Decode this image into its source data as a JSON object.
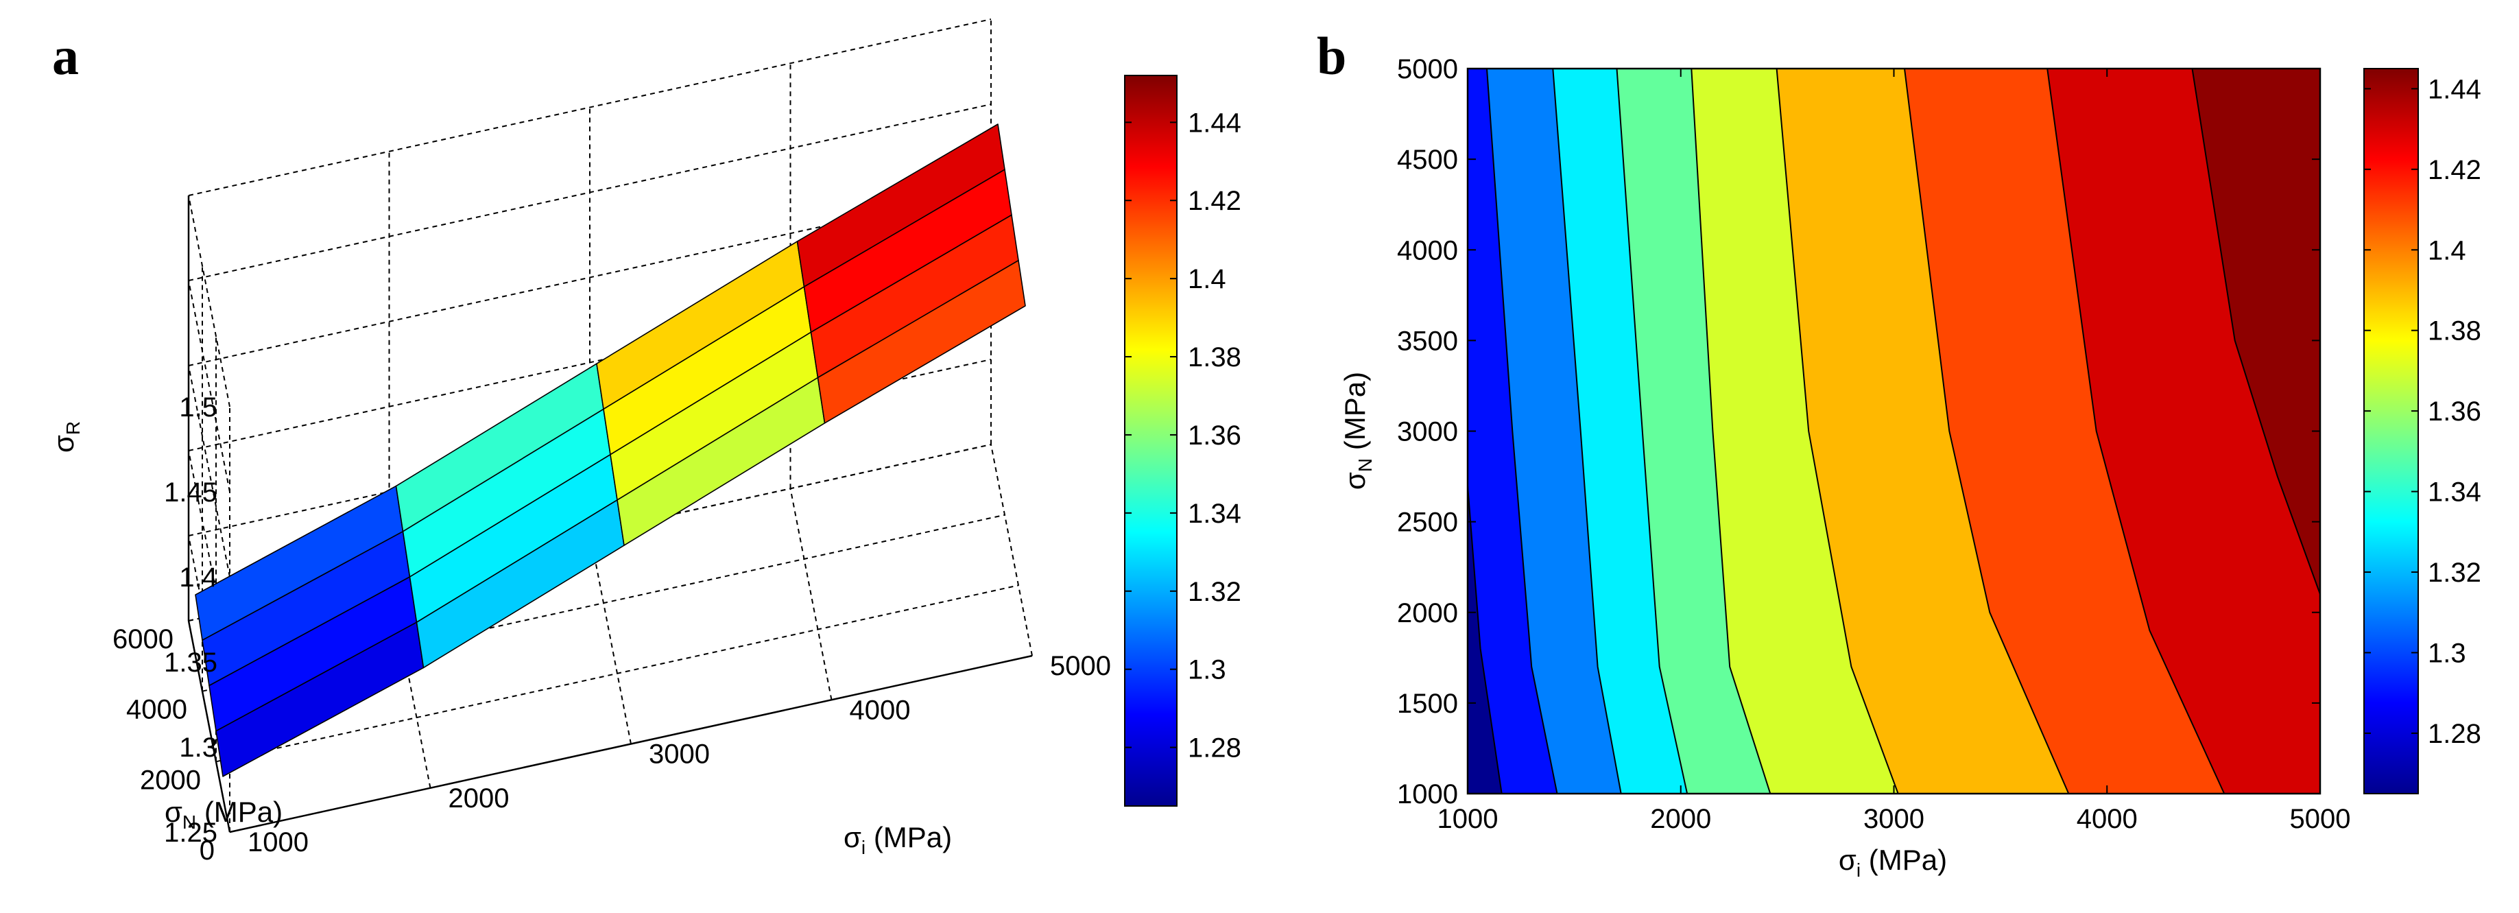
{
  "panels": [
    {
      "letter": "a"
    },
    {
      "letter": "b"
    }
  ],
  "chart_data": [
    {
      "type": "surface",
      "panel": "a",
      "x_name": "σ",
      "x_sub": "i",
      "x_unit": " (MPa)",
      "y_name": "σ",
      "y_sub": "N",
      "y_unit": " (MPa)",
      "z_name": "σ",
      "z_sub": "R",
      "xlim": [
        1000,
        5000
      ],
      "ylim": [
        0,
        6000
      ],
      "zlim": [
        1.25,
        1.5
      ],
      "x_ticks": [
        1000,
        2000,
        3000,
        4000,
        5000
      ],
      "y_ticks": [
        0,
        2000,
        4000,
        6000
      ],
      "z_ticks": [
        1.25,
        1.3,
        1.35,
        1.4,
        1.45,
        1.5
      ],
      "x_tick_labels": [
        "1000",
        "2000",
        "3000",
        "4000",
        "5000"
      ],
      "y_tick_labels": [
        "0",
        "2000",
        "4000",
        "6000"
      ],
      "z_tick_labels": [
        "1.25",
        "1.3",
        "1.35",
        "1.4",
        "1.45",
        "1.5"
      ],
      "x": [
        1000,
        2000,
        3000,
        4000,
        5000
      ],
      "y": [
        1000,
        2000,
        3000,
        4000,
        5000
      ],
      "z": [
        [
          1.262,
          1.3,
          1.346,
          1.392,
          1.435
        ],
        [
          1.268,
          1.306,
          1.352,
          1.398,
          1.441
        ],
        [
          1.274,
          1.312,
          1.358,
          1.404,
          1.447
        ],
        [
          1.28,
          1.318,
          1.364,
          1.41,
          1.453
        ],
        [
          1.286,
          1.324,
          1.37,
          1.416,
          1.459
        ]
      ],
      "colorbar": {
        "range": [
          1.265,
          1.452
        ],
        "ticks": [
          1.28,
          1.3,
          1.32,
          1.34,
          1.36,
          1.38,
          1.4,
          1.42,
          1.44
        ],
        "tick_labels": [
          "1.28",
          "1.3",
          "1.32",
          "1.34",
          "1.36",
          "1.38",
          "1.4",
          "1.42",
          "1.44"
        ]
      },
      "grid": true
    },
    {
      "type": "contour",
      "panel": "b",
      "x_name": "σ",
      "x_sub": "i",
      "x_unit": " (MPa)",
      "y_name": "σ",
      "y_sub": "N",
      "y_unit": " (MPa)",
      "xlim": [
        1000,
        5000
      ],
      "ylim": [
        1000,
        5000
      ],
      "x_ticks": [
        1000,
        2000,
        3000,
        4000,
        5000
      ],
      "y_ticks": [
        1000,
        1500,
        2000,
        2500,
        3000,
        3500,
        4000,
        4500,
        5000
      ],
      "x_tick_labels": [
        "1000",
        "2000",
        "3000",
        "4000",
        "5000"
      ],
      "y_tick_labels": [
        "1000",
        "1500",
        "2000",
        "2500",
        "3000",
        "3500",
        "4000",
        "4500",
        "5000"
      ],
      "levels": [
        1.28,
        1.3,
        1.32,
        1.34,
        1.36,
        1.38,
        1.4,
        1.42,
        1.44
      ],
      "contour_lines": [
        {
          "level": 1.28,
          "points": [
            [
              1000,
              2700
            ],
            [
              1060,
              1800
            ],
            [
              1160,
              1000
            ]
          ]
        },
        {
          "level": 1.3,
          "points": [
            [
              1090,
              5000
            ],
            [
              1210,
              3000
            ],
            [
              1300,
              1700
            ],
            [
              1420,
              1000
            ]
          ]
        },
        {
          "level": 1.32,
          "points": [
            [
              1400,
              5000
            ],
            [
              1530,
              3000
            ],
            [
              1610,
              1700
            ],
            [
              1720,
              1000
            ]
          ]
        },
        {
          "level": 1.34,
          "points": [
            [
              1700,
              5000
            ],
            [
              1820,
              3000
            ],
            [
              1900,
              1700
            ],
            [
              2030,
              1000
            ]
          ]
        },
        {
          "level": 1.36,
          "points": [
            [
              2050,
              5000
            ],
            [
              2150,
              3000
            ],
            [
              2230,
              1700
            ],
            [
              2420,
              1000
            ]
          ]
        },
        {
          "level": 1.38,
          "points": [
            [
              2450,
              5000
            ],
            [
              2600,
              3000
            ],
            [
              2800,
              1700
            ],
            [
              3020,
              1000
            ]
          ]
        },
        {
          "level": 1.4,
          "points": [
            [
              3050,
              5000
            ],
            [
              3260,
              3000
            ],
            [
              3450,
              2000
            ],
            [
              3820,
              1000
            ]
          ]
        },
        {
          "level": 1.42,
          "points": [
            [
              3720,
              5000
            ],
            [
              3950,
              3000
            ],
            [
              4200,
              1900
            ],
            [
              4550,
              1000
            ]
          ]
        },
        {
          "level": 1.44,
          "points": [
            [
              4400,
              5000
            ],
            [
              4600,
              3500
            ],
            [
              4800,
              2750
            ],
            [
              5000,
              2100
            ]
          ]
        }
      ],
      "colorbar": {
        "range": [
          1.265,
          1.445
        ],
        "ticks": [
          1.28,
          1.3,
          1.32,
          1.34,
          1.36,
          1.38,
          1.4,
          1.42,
          1.44
        ],
        "tick_labels": [
          "1.28",
          "1.3",
          "1.32",
          "1.34",
          "1.36",
          "1.38",
          "1.4",
          "1.42",
          "1.44"
        ]
      }
    }
  ]
}
